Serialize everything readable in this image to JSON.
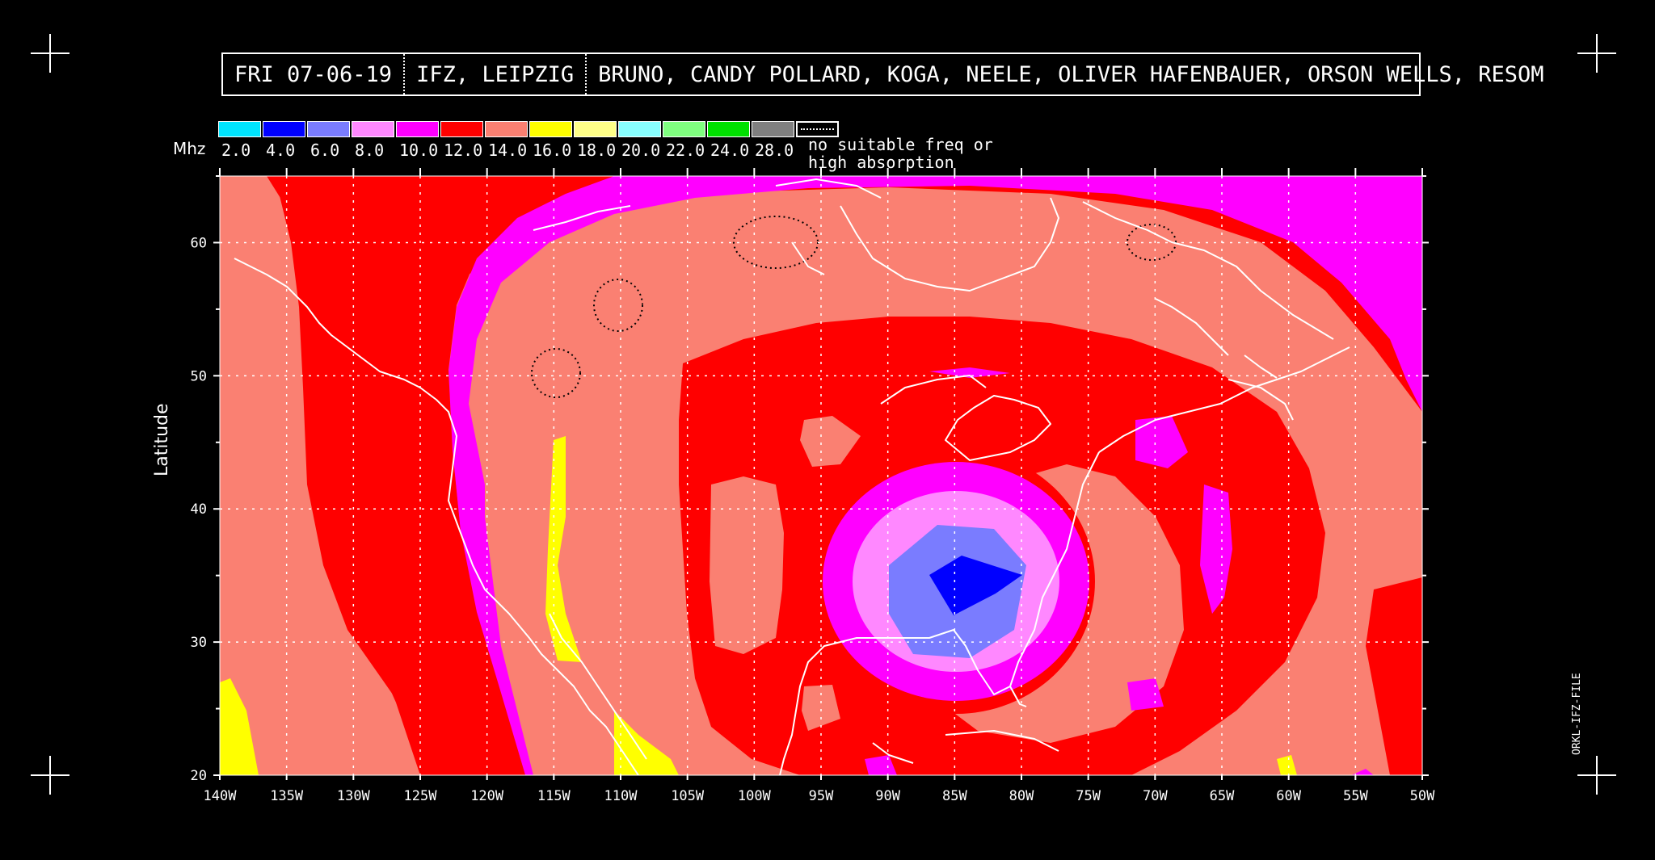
{
  "header": {
    "date": "FRI 07-06-19",
    "station": "IFZ, LEIPZIG",
    "names": "BRUNO, CANDY POLLARD, KOGA, NEELE, OLIVER HAFENBAUER, ORSON WELLS, RESOM"
  },
  "legend": {
    "unit": "Mhz",
    "items": [
      {
        "label": "2.0",
        "color": "#00e5ff"
      },
      {
        "label": "4.0",
        "color": "#0000ff"
      },
      {
        "label": "6.0",
        "color": "#7a7cff"
      },
      {
        "label": "8.0",
        "color": "#ff88ff"
      },
      {
        "label": "10.0",
        "color": "#ff00ff"
      },
      {
        "label": "12.0",
        "color": "#ff0000"
      },
      {
        "label": "14.0",
        "color": "#fa8072"
      },
      {
        "label": "16.0",
        "color": "#ffff00"
      },
      {
        "label": "18.0",
        "color": "#ffff88"
      },
      {
        "label": "20.0",
        "color": "#88ffff"
      },
      {
        "label": "22.0",
        "color": "#80ff80"
      },
      {
        "label": "24.0",
        "color": "#00e000"
      },
      {
        "label": "28.0",
        "color": "#808080"
      }
    ],
    "no_suitable_line1": "no suitable freq or",
    "no_suitable_line2": "high absorption"
  },
  "axes": {
    "ylabel": "Latitude",
    "y_ticks": [
      "60",
      "50",
      "40",
      "30",
      "20"
    ],
    "x_ticks": [
      "140W",
      "135W",
      "130W",
      "125W",
      "120W",
      "115W",
      "110W",
      "105W",
      "100W",
      "95W",
      "90W",
      "85W",
      "80W",
      "75W",
      "70W",
      "65W",
      "60W",
      "55W",
      "50W"
    ]
  },
  "file_id": "ORKL-IFZ-FILE"
}
